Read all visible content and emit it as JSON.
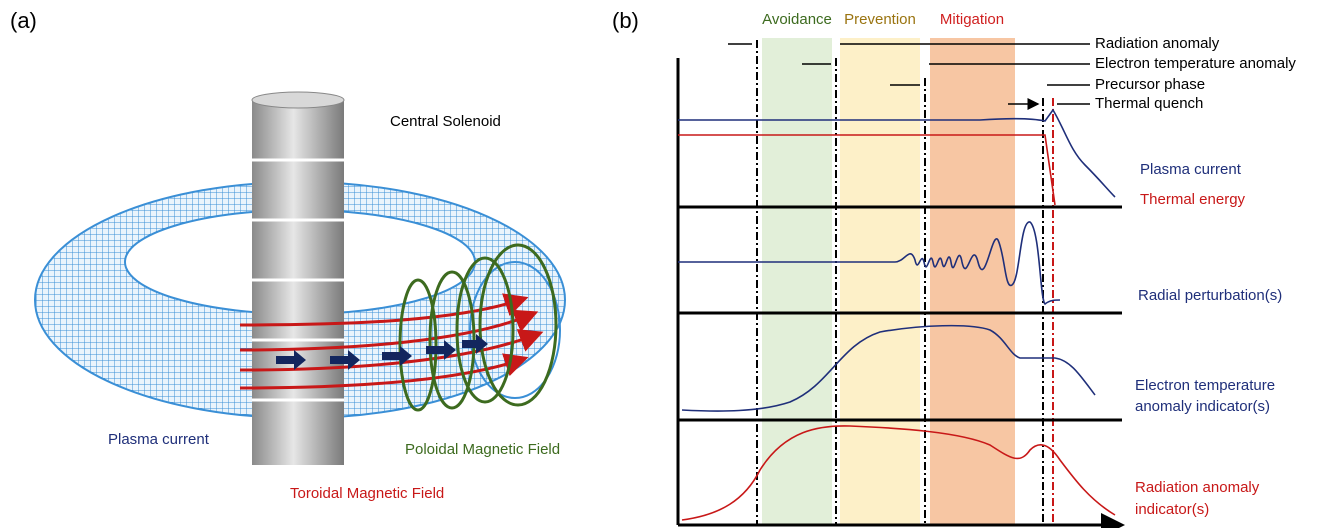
{
  "panel_a": {
    "label": "(a)",
    "labels": {
      "solenoid": "Central Solenoid",
      "plasma_current": "Plasma current",
      "poloidal": "Poloidal Magnetic Field",
      "toroidal": "Toroidal Magnetic Field"
    }
  },
  "panel_b": {
    "label": "(b)",
    "phases": [
      "Avoidance",
      "Prevention",
      "Mitigation"
    ],
    "events": [
      "Radiation anomaly",
      "Electron temperature anomaly",
      "Precursor phase",
      "Thermal quench"
    ],
    "signals": {
      "plasma_current": "Plasma current",
      "thermal_energy": "Thermal energy",
      "radial": "Radial perturbation(s)",
      "electron_temperature": [
        "Electron temperature",
        "anomaly indicator(s)"
      ],
      "radiation": [
        "Radiation anomaly",
        "indicator(s)"
      ]
    }
  }
}
